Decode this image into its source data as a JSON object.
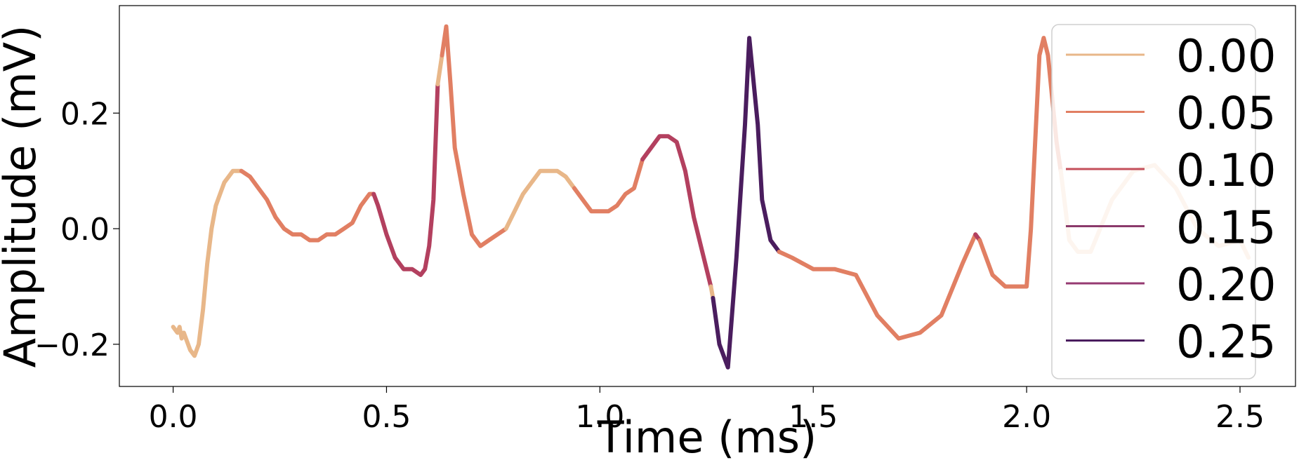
{
  "chart_data": {
    "type": "line",
    "title": "",
    "xlabel": "Time (ms)",
    "ylabel": "Amplitude (mV)",
    "xlim": [
      -0.126,
      2.63
    ],
    "ylim": [
      -0.273,
      0.386
    ],
    "xticks": [
      0.0,
      0.5,
      1.0,
      1.5,
      2.0,
      2.5
    ],
    "xtick_labels": [
      "0.0",
      "0.5",
      "1.0",
      "1.5",
      "2.0",
      "2.5"
    ],
    "yticks": [
      -0.2,
      0.0,
      0.2
    ],
    "ytick_labels": [
      "−0.2",
      "0.0",
      "0.2"
    ],
    "grid": false,
    "legend_position": "right",
    "colormap": "flare",
    "legend": [
      {
        "label": "0.00",
        "color": "#e8b789"
      },
      {
        "label": "0.05",
        "color": "#e17f63"
      },
      {
        "label": "0.10",
        "color": "#c44f5b"
      },
      {
        "label": "0.15",
        "color": "#8b3a6b"
      },
      {
        "label": "0.20",
        "color": "#963a72"
      },
      {
        "label": "0.25",
        "color": "#4a1d5e"
      }
    ],
    "segments": [
      {
        "color": "#e8b789",
        "x": [
          0.0,
          0.01,
          0.015,
          0.02,
          0.025,
          0.03,
          0.04,
          0.05,
          0.06,
          0.07,
          0.08,
          0.09,
          0.1,
          0.11,
          0.12,
          0.13,
          0.14,
          0.15,
          0.16
        ],
        "y": [
          -0.17,
          -0.18,
          -0.17,
          -0.19,
          -0.18,
          -0.19,
          -0.21,
          -0.22,
          -0.2,
          -0.14,
          -0.06,
          0.0,
          0.04,
          0.06,
          0.08,
          0.09,
          0.1,
          0.1,
          0.1
        ]
      },
      {
        "color": "#e17f63",
        "x": [
          0.16,
          0.18,
          0.2,
          0.22,
          0.24,
          0.26,
          0.28,
          0.3,
          0.32,
          0.34,
          0.36,
          0.38,
          0.4,
          0.42,
          0.44,
          0.46,
          0.47
        ],
        "y": [
          0.1,
          0.09,
          0.07,
          0.05,
          0.02,
          0.0,
          -0.01,
          -0.01,
          -0.02,
          -0.02,
          -0.01,
          -0.01,
          0.0,
          0.01,
          0.04,
          0.06,
          0.06
        ]
      },
      {
        "color": "#b3405f",
        "x": [
          0.47,
          0.48,
          0.5,
          0.52,
          0.54,
          0.56,
          0.58,
          0.59,
          0.6,
          0.61,
          0.62
        ],
        "y": [
          0.06,
          0.04,
          -0.01,
          -0.05,
          -0.07,
          -0.07,
          -0.08,
          -0.07,
          -0.03,
          0.05,
          0.25
        ]
      },
      {
        "color": "#e8b789",
        "x": [
          0.62,
          0.63
        ],
        "y": [
          0.25,
          0.3
        ]
      },
      {
        "color": "#e17f63",
        "x": [
          0.63,
          0.64,
          0.65,
          0.66,
          0.68,
          0.7,
          0.72,
          0.74,
          0.76,
          0.78
        ],
        "y": [
          0.3,
          0.35,
          0.25,
          0.14,
          0.06,
          -0.01,
          -0.03,
          -0.02,
          -0.01,
          0.0
        ]
      },
      {
        "color": "#e8b789",
        "x": [
          0.78,
          0.8,
          0.82,
          0.84,
          0.86,
          0.88,
          0.9,
          0.92,
          0.94
        ],
        "y": [
          0.0,
          0.03,
          0.06,
          0.08,
          0.1,
          0.1,
          0.1,
          0.09,
          0.07
        ]
      },
      {
        "color": "#e17f63",
        "x": [
          0.94,
          0.96,
          0.98,
          1.0,
          1.02,
          1.04,
          1.06,
          1.08,
          1.1
        ],
        "y": [
          0.07,
          0.05,
          0.03,
          0.03,
          0.03,
          0.04,
          0.06,
          0.07,
          0.12
        ]
      },
      {
        "color": "#b3405f",
        "x": [
          1.1,
          1.12,
          1.14,
          1.16,
          1.18,
          1.2,
          1.22,
          1.24,
          1.26
        ],
        "y": [
          0.12,
          0.14,
          0.16,
          0.16,
          0.15,
          0.1,
          0.02,
          -0.04,
          -0.1
        ]
      },
      {
        "color": "#e8b789",
        "x": [
          1.26,
          1.265
        ],
        "y": [
          -0.1,
          -0.12
        ]
      },
      {
        "color": "#4a1d5e",
        "x": [
          1.265,
          1.28,
          1.3,
          1.32,
          1.34,
          1.35,
          1.37,
          1.38,
          1.4,
          1.42
        ],
        "y": [
          -0.12,
          -0.2,
          -0.24,
          -0.05,
          0.18,
          0.33,
          0.18,
          0.05,
          -0.02,
          -0.04
        ]
      },
      {
        "color": "#e17f63",
        "x": [
          1.42,
          1.45,
          1.5,
          1.55,
          1.6,
          1.65,
          1.7,
          1.75,
          1.8,
          1.85,
          1.88
        ],
        "y": [
          -0.04,
          -0.05,
          -0.07,
          -0.07,
          -0.08,
          -0.15,
          -0.19,
          -0.18,
          -0.15,
          -0.06,
          -0.01
        ]
      },
      {
        "color": "#b3405f",
        "x": [
          1.88,
          1.89
        ],
        "y": [
          -0.01,
          -0.02
        ]
      },
      {
        "color": "#e17f63",
        "x": [
          1.89,
          1.92,
          1.95,
          1.98,
          2.0,
          2.01,
          2.03,
          2.04,
          2.05,
          2.07,
          2.08
        ],
        "y": [
          -0.02,
          -0.08,
          -0.1,
          -0.1,
          -0.1,
          0.0,
          0.3,
          0.33,
          0.3,
          0.15,
          0.1
        ]
      },
      {
        "color": "#f2c5a5",
        "x": [
          2.08,
          2.1,
          2.12,
          2.15,
          2.2,
          2.25,
          2.3,
          2.35,
          2.4,
          2.45,
          2.5,
          2.52
        ],
        "y": [
          0.1,
          -0.02,
          -0.04,
          -0.04,
          0.05,
          0.1,
          0.11,
          0.07,
          0.0,
          -0.03,
          -0.02,
          -0.05
        ]
      }
    ]
  }
}
